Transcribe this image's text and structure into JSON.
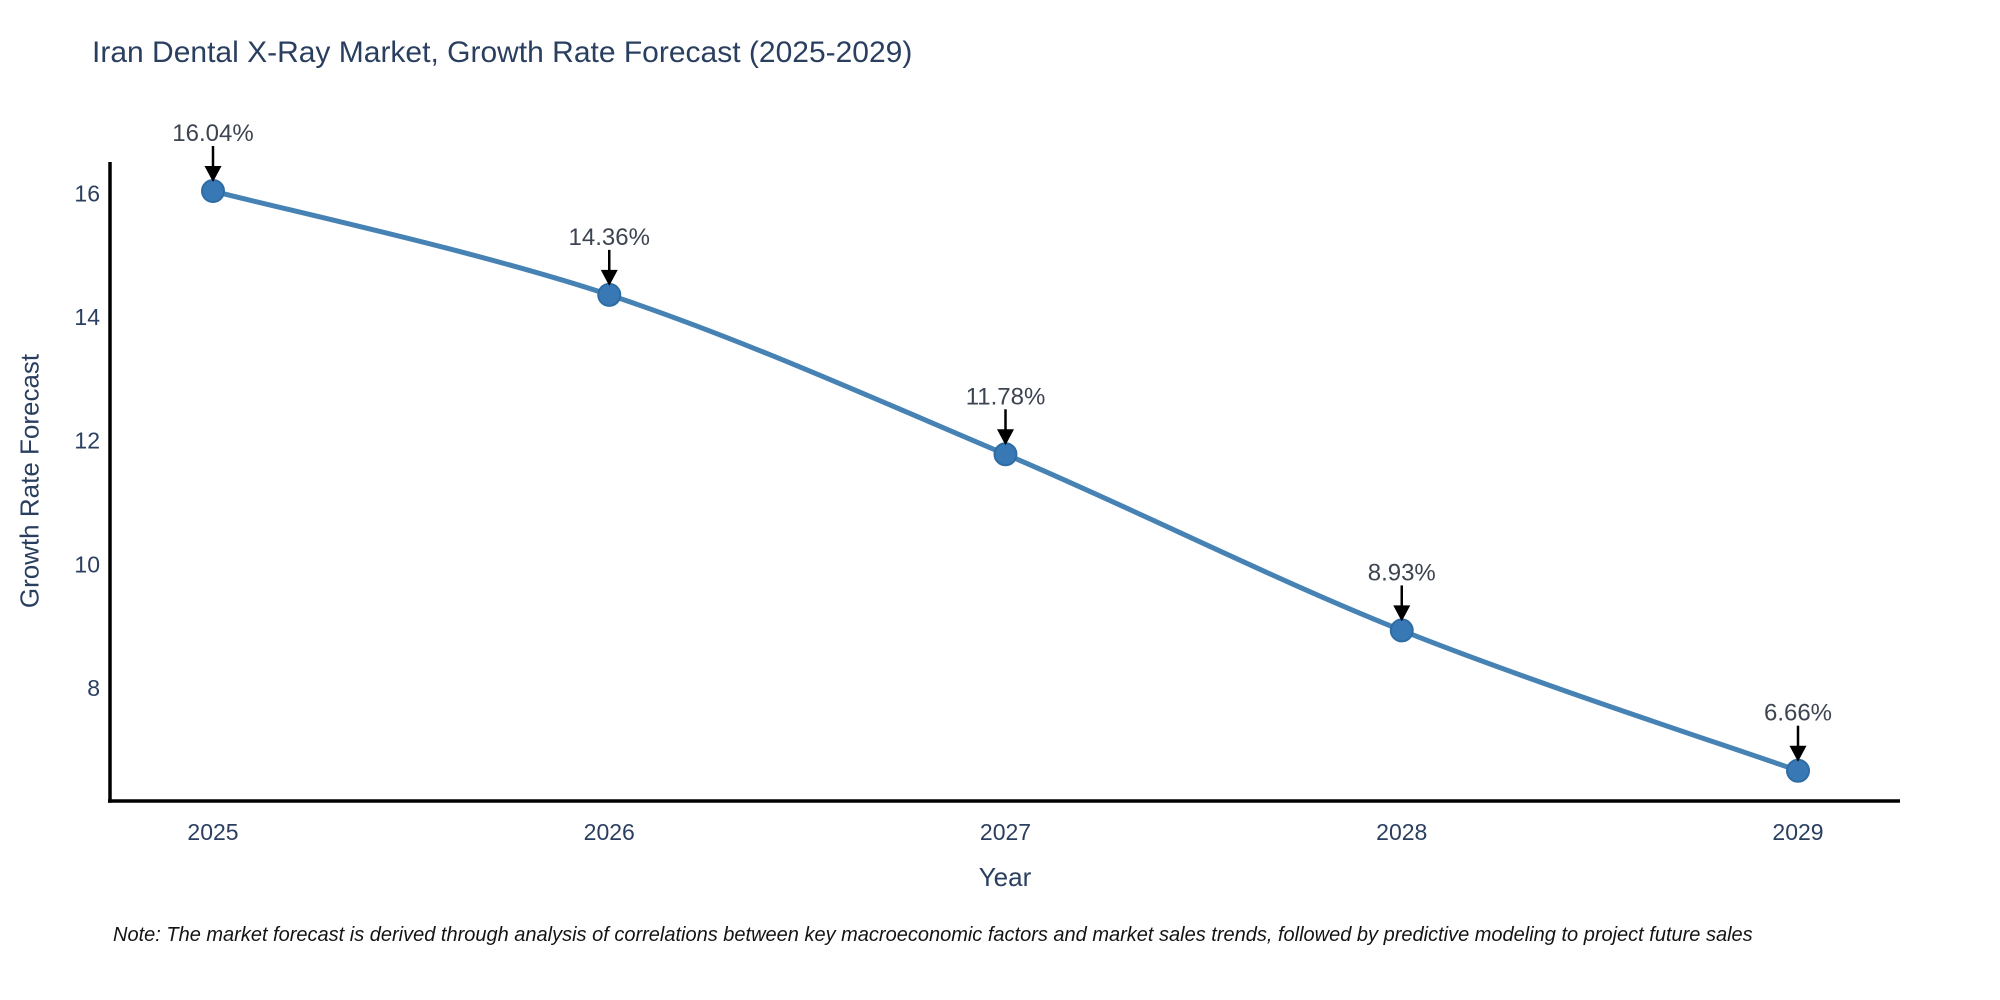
{
  "note": "Note: The market forecast is derived through analysis of correlations between key macroeconomic factors and market sales trends, followed by predictive modeling to project future sales",
  "chart_data": {
    "type": "line",
    "title": "Iran Dental X-Ray Market, Growth Rate Forecast (2025-2029)",
    "xlabel": "Year",
    "ylabel": "Growth Rate Forecast",
    "x": [
      2025,
      2026,
      2027,
      2028,
      2029
    ],
    "y": [
      16.04,
      14.36,
      11.78,
      8.93,
      6.66
    ],
    "point_labels": [
      "16.04%",
      "14.36%",
      "11.78%",
      "8.93%",
      "6.66%"
    ],
    "yticks": [
      8,
      10,
      12,
      14,
      16
    ],
    "ylim": [
      6.2,
      16.5
    ],
    "line_shape": "spline",
    "grid": false,
    "legend": false,
    "annotations_have_arrows": true,
    "colors": {
      "line": "#4682b4",
      "marker_fill": "#3878b4",
      "marker_edge": "#2e6da4",
      "axis_line": "#000000",
      "tick_text": "#2a3f5f",
      "axis_title_text": "#2a3f5f",
      "title_text": "#2a3f5f",
      "annotation_text": "#3d4451",
      "arrow": "#000000",
      "background": "#ffffff"
    }
  }
}
